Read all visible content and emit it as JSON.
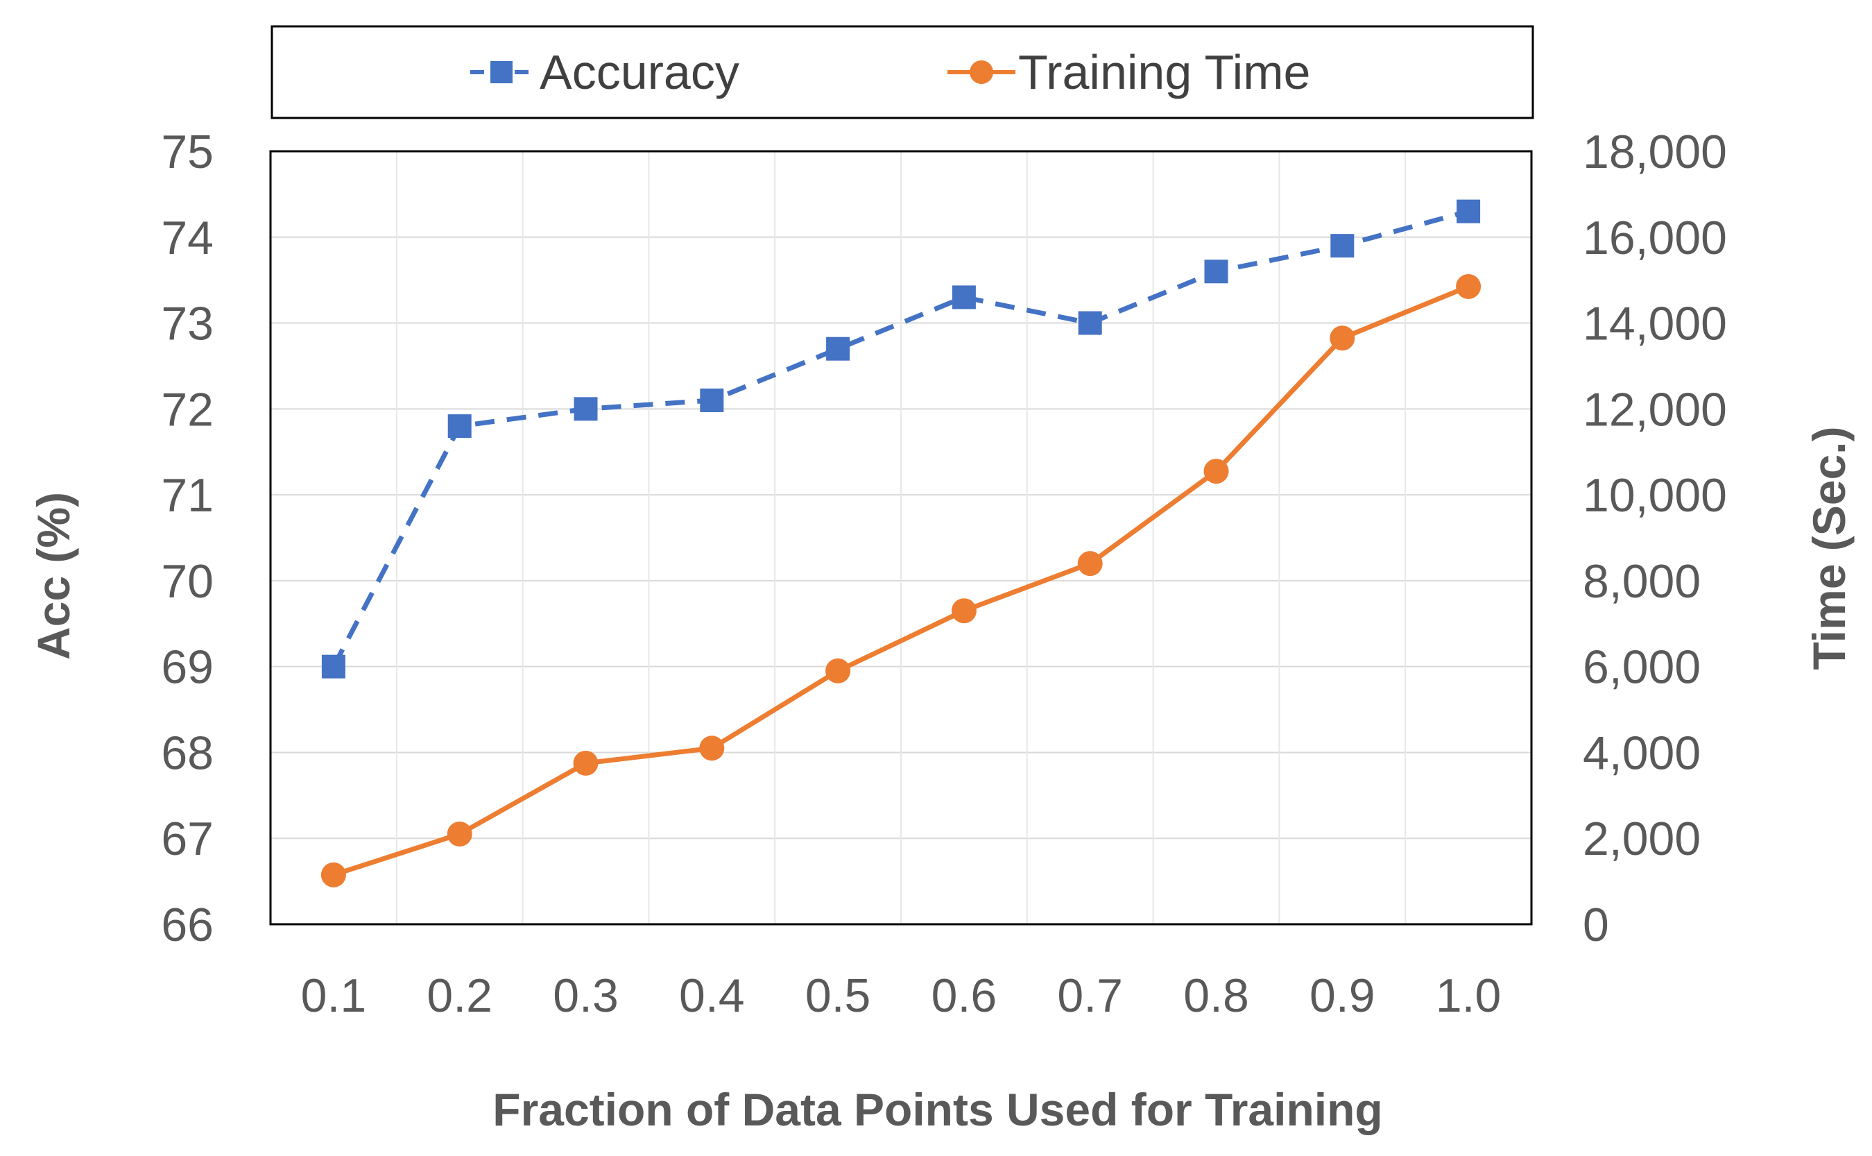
{
  "chart_data": {
    "type": "line",
    "x": [
      0.1,
      0.2,
      0.3,
      0.4,
      0.5,
      0.6,
      0.7,
      0.8,
      0.9,
      1.0
    ],
    "x_tick_labels": [
      "0.1",
      "0.2",
      "0.3",
      "0.4",
      "0.5",
      "0.6",
      "0.7",
      "0.8",
      "0.9",
      "1.0"
    ],
    "xlabel": "Fraction of Data Points Used for Training",
    "ylabel_left": "Acc (%)",
    "ylabel_right": "Time (Sec.)",
    "ylim_left": [
      66,
      75
    ],
    "ylim_right": [
      0,
      18000
    ],
    "y_left_tick_labels": [
      "66",
      "67",
      "68",
      "69",
      "70",
      "71",
      "72",
      "73",
      "74",
      "75"
    ],
    "y_right_tick_labels": [
      "0",
      "2,000",
      "4,000",
      "6,000",
      "8,000",
      "10,000",
      "12,000",
      "14,000",
      "16,000",
      "18,000"
    ],
    "grid": true,
    "legend_position": "top",
    "series": [
      {
        "name": "Accuracy",
        "axis": "left",
        "color": "#4472C4",
        "line_style": "dashed",
        "marker": "square",
        "values": [
          69.0,
          71.8,
          72.0,
          72.1,
          72.7,
          73.3,
          73.0,
          73.6,
          73.9,
          74.3
        ]
      },
      {
        "name": "Training Time",
        "axis": "right",
        "color": "#ED7D31",
        "line_style": "solid",
        "marker": "circle",
        "values": [
          1150,
          2100,
          3750,
          4100,
          5900,
          7300,
          8400,
          10550,
          13650,
          14850
        ]
      }
    ]
  }
}
